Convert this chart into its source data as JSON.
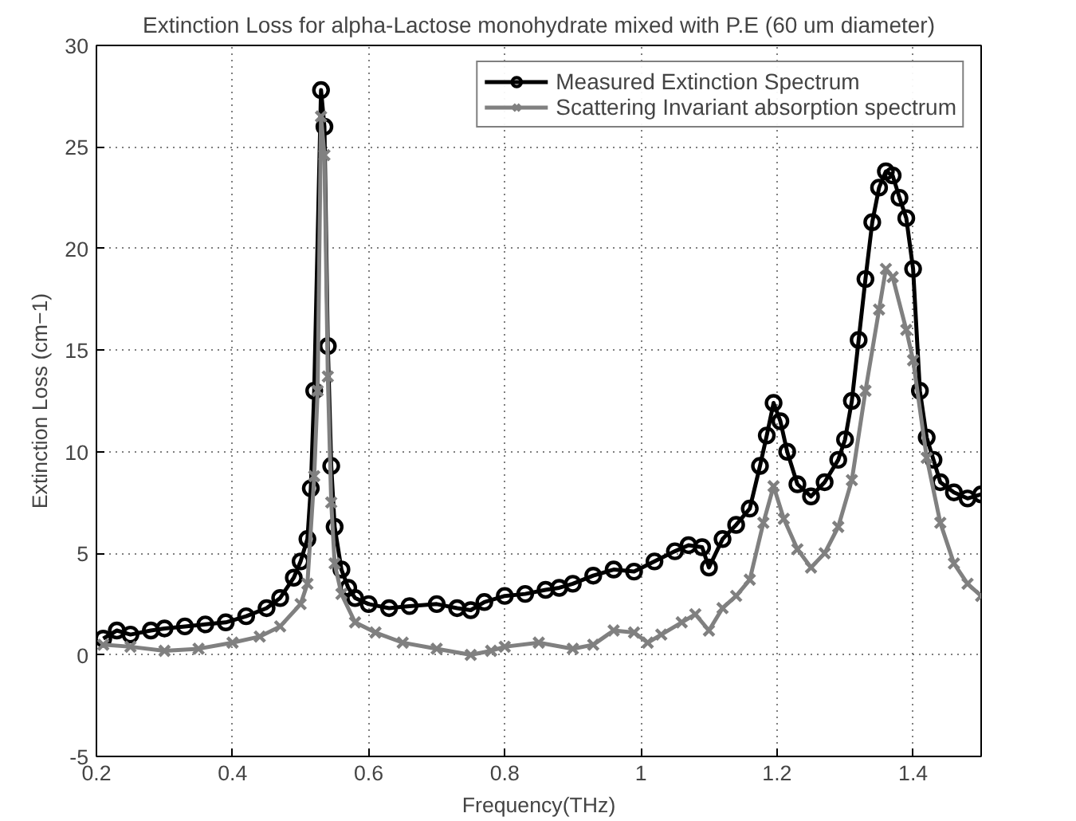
{
  "chart_data": {
    "type": "line",
    "title": "Extinction Loss for alpha-Lactose monohydrate mixed with P.E (60 um diameter)",
    "xlabel": "Frequency(THz)",
    "ylabel": "Extinction Loss (cm−1)",
    "xlim": [
      0.2,
      1.5
    ],
    "ylim": [
      -5,
      30
    ],
    "xticks": [
      0.2,
      0.4,
      0.6,
      0.8,
      1,
      1.2,
      1.4
    ],
    "yticks": [
      -5,
      0,
      5,
      10,
      15,
      20,
      25,
      30
    ],
    "grid": true,
    "legend": "top right",
    "line_style": "solid",
    "series": [
      {
        "name": "Measured Extinction Spectrum",
        "color": "#000000",
        "marker": "circle",
        "x": [
          0.21,
          0.23,
          0.25,
          0.28,
          0.3,
          0.33,
          0.36,
          0.39,
          0.42,
          0.45,
          0.47,
          0.49,
          0.5,
          0.51,
          0.515,
          0.52,
          0.53,
          0.535,
          0.54,
          0.545,
          0.55,
          0.56,
          0.57,
          0.58,
          0.6,
          0.63,
          0.66,
          0.7,
          0.73,
          0.75,
          0.77,
          0.8,
          0.83,
          0.86,
          0.88,
          0.9,
          0.93,
          0.96,
          0.99,
          1.02,
          1.05,
          1.07,
          1.09,
          1.1,
          1.12,
          1.14,
          1.16,
          1.175,
          1.185,
          1.195,
          1.205,
          1.215,
          1.23,
          1.25,
          1.27,
          1.29,
          1.3,
          1.31,
          1.32,
          1.33,
          1.34,
          1.35,
          1.36,
          1.37,
          1.38,
          1.39,
          1.4,
          1.41,
          1.42,
          1.43,
          1.44,
          1.46,
          1.48,
          1.5
        ],
        "values": [
          0.8,
          1.2,
          1.0,
          1.2,
          1.3,
          1.4,
          1.5,
          1.6,
          1.9,
          2.3,
          2.8,
          3.8,
          4.6,
          5.7,
          8.2,
          13,
          27.8,
          26.0,
          15.2,
          9.3,
          6.3,
          4.2,
          3.3,
          2.8,
          2.5,
          2.3,
          2.4,
          2.5,
          2.3,
          2.2,
          2.6,
          2.9,
          3.0,
          3.2,
          3.3,
          3.5,
          3.9,
          4.2,
          4.1,
          4.6,
          5.1,
          5.4,
          5.3,
          4.3,
          5.7,
          6.4,
          7.2,
          9.3,
          10.8,
          12.4,
          11.5,
          10.0,
          8.4,
          7.8,
          8.5,
          9.6,
          10.6,
          12.5,
          15.5,
          18.5,
          21.3,
          23.0,
          23.8,
          23.6,
          22.5,
          21.5,
          19.0,
          13.0,
          10.7,
          9.6,
          8.5,
          8.0,
          7.7,
          7.9
        ]
      },
      {
        "name": "Scattering Invariant absorption spectrum",
        "color": "#808080",
        "marker": "cross",
        "x": [
          0.21,
          0.25,
          0.3,
          0.35,
          0.4,
          0.44,
          0.47,
          0.5,
          0.51,
          0.52,
          0.525,
          0.53,
          0.535,
          0.54,
          0.545,
          0.55,
          0.56,
          0.58,
          0.61,
          0.65,
          0.7,
          0.75,
          0.78,
          0.8,
          0.85,
          0.9,
          0.93,
          0.96,
          0.99,
          1.01,
          1.03,
          1.06,
          1.08,
          1.1,
          1.12,
          1.14,
          1.16,
          1.18,
          1.195,
          1.21,
          1.23,
          1.25,
          1.27,
          1.29,
          1.31,
          1.33,
          1.35,
          1.36,
          1.37,
          1.39,
          1.4,
          1.42,
          1.44,
          1.46,
          1.48,
          1.5
        ],
        "values": [
          0.5,
          0.4,
          0.2,
          0.3,
          0.6,
          0.9,
          1.4,
          2.5,
          3.5,
          8.8,
          13,
          26.5,
          24.6,
          13.7,
          7.5,
          4.5,
          3.0,
          1.6,
          1.1,
          0.6,
          0.3,
          0.0,
          0.2,
          0.4,
          0.6,
          0.3,
          0.5,
          1.2,
          1.1,
          0.6,
          1.0,
          1.6,
          2.0,
          1.2,
          2.3,
          2.9,
          3.7,
          6.5,
          8.3,
          6.7,
          5.2,
          4.3,
          5.0,
          6.3,
          8.6,
          13.0,
          17.0,
          19.0,
          18.6,
          16.0,
          14.5,
          9.7,
          6.5,
          4.5,
          3.5,
          2.9
        ]
      }
    ]
  }
}
